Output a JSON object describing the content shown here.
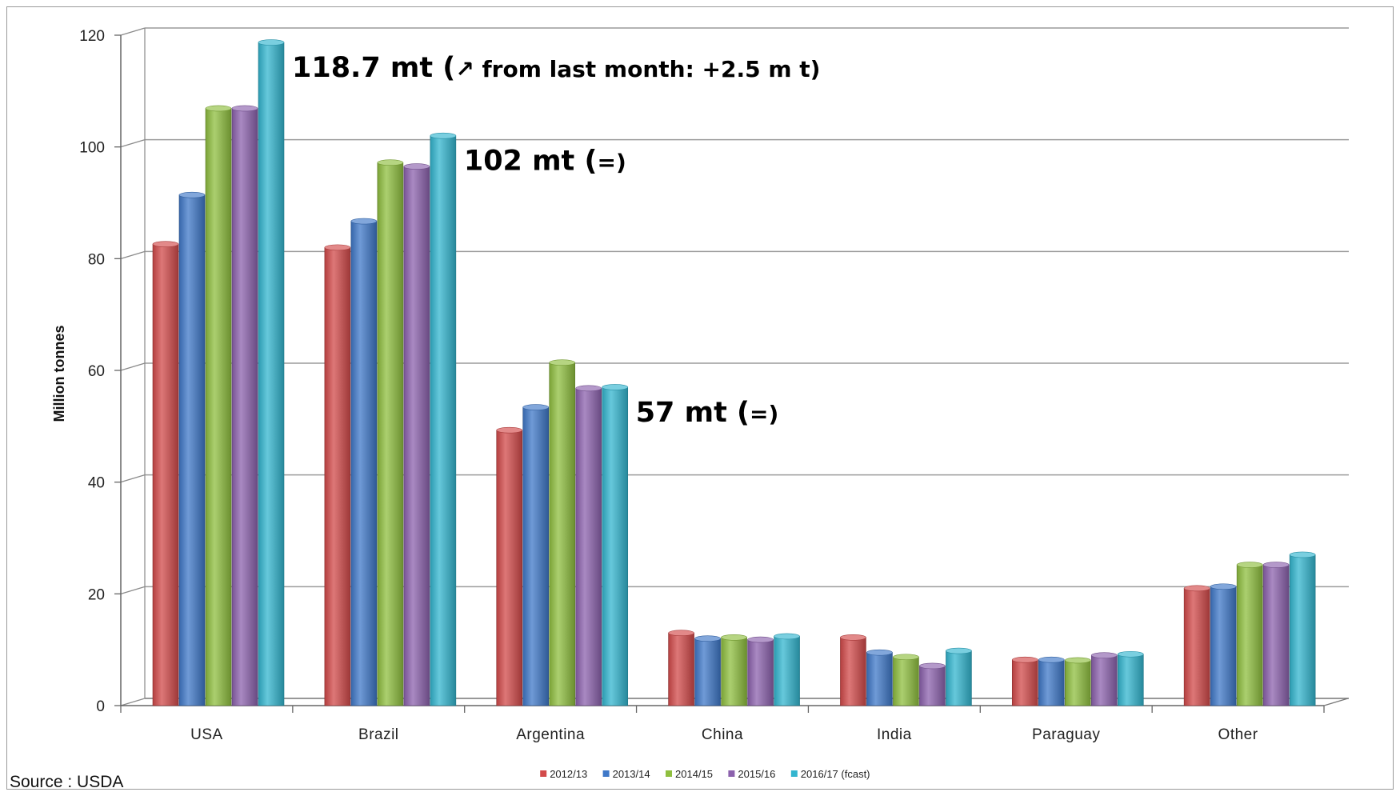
{
  "chart_data": {
    "type": "bar",
    "categories": [
      "USA",
      "Brazil",
      "Argentina",
      "China",
      "India",
      "Paraguay",
      "Other"
    ],
    "series": [
      {
        "name": "2012/13",
        "color": "#d24a4a",
        "values": [
          82.6,
          82.0,
          49.3,
          13.0,
          12.2,
          8.2,
          21.0
        ]
      },
      {
        "name": "2013/14",
        "color": "#3f78c8",
        "values": [
          91.4,
          86.7,
          53.4,
          12.0,
          9.5,
          8.2,
          21.3
        ]
      },
      {
        "name": "2014/15",
        "color": "#8fbf3f",
        "values": [
          106.9,
          97.2,
          61.4,
          12.2,
          8.7,
          8.1,
          25.2
        ]
      },
      {
        "name": "2015/16",
        "color": "#8c62ad",
        "values": [
          106.9,
          96.5,
          56.8,
          11.8,
          7.1,
          9.0,
          25.2
        ]
      },
      {
        "name": "2016/17 (fcast)",
        "color": "#33b5cf",
        "values": [
          118.7,
          102.0,
          57.0,
          12.4,
          9.8,
          9.2,
          27.0
        ]
      }
    ],
    "ylabel": "Million tonnes",
    "ylim": [
      0,
      120
    ],
    "yticks": [
      0,
      20,
      40,
      60,
      80,
      100,
      120
    ],
    "grid": true,
    "legend_position": "bottom",
    "annotations": [
      {
        "category": "USA",
        "main": "118.7 mt (",
        "detail": "↗ from last month: +2.5 m t)"
      },
      {
        "category": "Brazil",
        "main": "102 mt (",
        "detail": "=)"
      },
      {
        "category": "Argentina",
        "main": "57 mt (",
        "detail": "=)"
      }
    ]
  },
  "source": "Source : USDA"
}
